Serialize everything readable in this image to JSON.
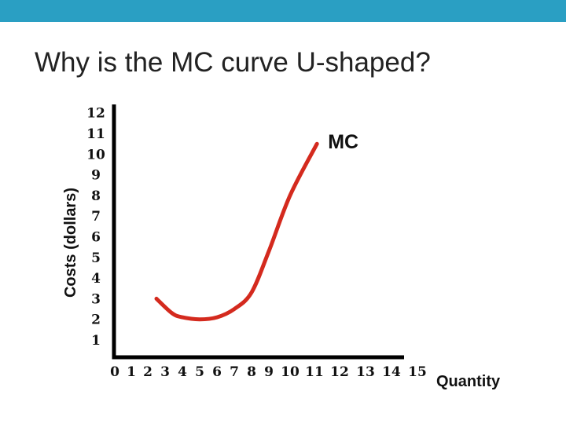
{
  "slide": {
    "title": "Why is the MC curve U-shaped?",
    "accent_color": "#2a9fc3"
  },
  "chart_data": {
    "type": "line",
    "title": "",
    "xlabel": "Quantity",
    "ylabel": "Costs (dollars)",
    "x_ticks": [
      "0",
      "1",
      "2",
      "3",
      "4",
      "5",
      "6",
      "7",
      "8",
      "9",
      "10",
      "11",
      "12",
      "13",
      "14",
      "15"
    ],
    "y_ticks": [
      "1",
      "2",
      "3",
      "4",
      "5",
      "6",
      "7",
      "8",
      "9",
      "10",
      "11",
      "12"
    ],
    "series": [
      {
        "name": "MC",
        "color": "#d42a1e",
        "points": [
          {
            "x": 2.5,
            "y": 3.0
          },
          {
            "x": 3.4,
            "y": 2.3
          },
          {
            "x": 4.0,
            "y": 2.1
          },
          {
            "x": 5.0,
            "y": 2.0
          },
          {
            "x": 6.0,
            "y": 2.1
          },
          {
            "x": 7.0,
            "y": 2.5
          },
          {
            "x": 8.0,
            "y": 3.3
          },
          {
            "x": 9.0,
            "y": 5.3
          },
          {
            "x": 10.0,
            "y": 8.0
          },
          {
            "x": 11.1,
            "y": 10.5
          }
        ]
      }
    ],
    "grid": false,
    "legend": "none"
  }
}
